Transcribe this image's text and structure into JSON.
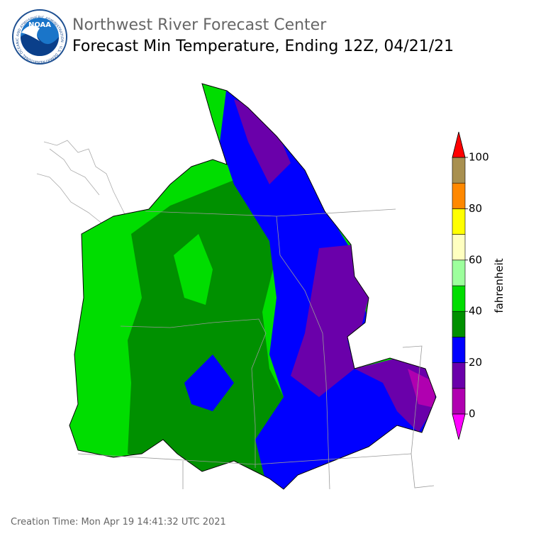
{
  "logo": {
    "text": "NOAA",
    "ring": "NATIONAL OCEANIC AND ATMOSPHERIC ADMINISTRATION · U.S. DEPARTMENT OF COMMERCE"
  },
  "header": {
    "title": "Northwest River Forecast Center",
    "subtitle": "Forecast Min Temperature, Ending 12Z, 04/21/21"
  },
  "colorbar": {
    "label": "fahrenheit",
    "range": [
      0,
      100
    ],
    "ticks": [
      0,
      20,
      40,
      60,
      80,
      100
    ],
    "bins": [
      0,
      10,
      20,
      30,
      40,
      50,
      60,
      70,
      80,
      90,
      100
    ],
    "colors": [
      "#b000b0",
      "#6a00aa",
      "#0000ff",
      "#009000",
      "#00dd00",
      "#9dff9d",
      "#ffffc0",
      "#ffff00",
      "#ff8800",
      "#a89050"
    ],
    "under_color": "#ff00ff",
    "over_color": "#ff0000"
  },
  "footer": "Creation Time: Mon Apr 19 14:41:32 UTC 2021"
}
